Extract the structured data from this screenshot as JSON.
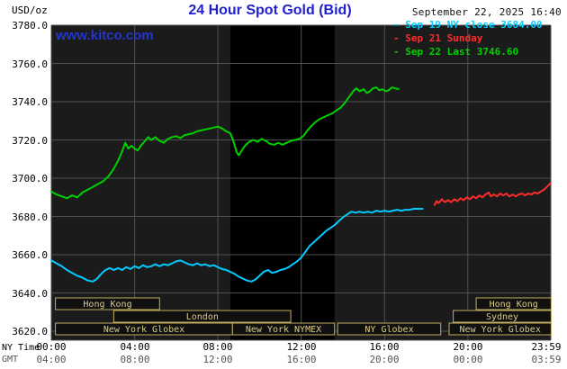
{
  "header": {
    "units_label": "USD/oz",
    "title": "24 Hour Spot Gold (Bid)",
    "datetime": "September 22, 2025 16:40",
    "watermark": "www.kitco.com"
  },
  "legend": [
    {
      "dash": "-",
      "label": "Sep 19 NY close 3684.00",
      "color": "#00ccff"
    },
    {
      "dash": "-",
      "label": "Sep 21 Sunday",
      "color": "#ff2b2b"
    },
    {
      "dash": "-",
      "label": "Sep 22 Last 3746.60",
      "color": "#00d000"
    }
  ],
  "axes": {
    "y_ticks": [
      "3780.0",
      "3760.0",
      "3740.0",
      "3720.0",
      "3700.0",
      "3680.0",
      "3660.0",
      "3640.0",
      "3620.0"
    ],
    "x_ny_label": "NY Time",
    "x_gmt_label": "GMT",
    "x_ny_ticks": [
      "00:00",
      "04:00",
      "08:00",
      "12:00",
      "16:00",
      "20:00",
      "23:59"
    ],
    "x_gmt_ticks": [
      "04:00",
      "08:00",
      "12:00",
      "16:00",
      "20:00",
      "00:00",
      "03:59"
    ]
  },
  "sessions": [
    {
      "label": "Hong Kong",
      "row": 0,
      "start": 0.2,
      "end": 5.2
    },
    {
      "label": "Hong Kong",
      "row": 0,
      "start": 20.4,
      "end": 24
    },
    {
      "label": "London",
      "row": 1,
      "start": 3.0,
      "end": 11.5
    },
    {
      "label": "Sydney",
      "row": 1,
      "start": 19.3,
      "end": 24
    },
    {
      "label": "New York Globex",
      "row": 2,
      "start": 0.2,
      "end": 8.7
    },
    {
      "label": "New York NYMEX",
      "row": 2,
      "start": 8.7,
      "end": 13.6
    },
    {
      "label": "NY Globex",
      "row": 2,
      "start": 13.75,
      "end": 18.7
    },
    {
      "label": "New York Globex",
      "row": 2,
      "start": 19.1,
      "end": 24
    }
  ],
  "colors": {
    "page_bg": "#ffffff",
    "plot_bg": "#1b1b1b",
    "band": "#000000",
    "grid": "#505050",
    "session_border": "#bfae62",
    "session_fill": "#101010",
    "session_text": "#d9cb87",
    "title_blue": "#2121cc",
    "watermark_blue": "#2336cc"
  },
  "chart_data": {
    "type": "line",
    "title": "24 Hour Spot Gold (Bid)",
    "ylabel": "USD/oz",
    "ylim": [
      3620,
      3780
    ],
    "xlim_hours": [
      0,
      24
    ],
    "x_tick_hours": [
      0,
      4,
      8,
      12,
      16,
      20,
      23.983
    ],
    "grid": true,
    "legend_position": "top-right",
    "nymex_band_hours": [
      8.6,
      13.6
    ],
    "series": [
      {
        "id": "sep19",
        "name": "Sep 19 NY close",
        "close_value": 3684.0,
        "color": "#00ccff",
        "points": [
          [
            0,
            3657
          ],
          [
            0.25,
            3655.5
          ],
          [
            0.5,
            3654
          ],
          [
            0.75,
            3652
          ],
          [
            1,
            3650.5
          ],
          [
            1.25,
            3649
          ],
          [
            1.5,
            3648
          ],
          [
            1.75,
            3646.5
          ],
          [
            2,
            3646
          ],
          [
            2.2,
            3647.5
          ],
          [
            2.4,
            3650
          ],
          [
            2.6,
            3652
          ],
          [
            2.8,
            3653
          ],
          [
            3,
            3652
          ],
          [
            3.2,
            3653
          ],
          [
            3.4,
            3652
          ],
          [
            3.6,
            3653.5
          ],
          [
            3.8,
            3652.5
          ],
          [
            4,
            3654
          ],
          [
            4.2,
            3653
          ],
          [
            4.4,
            3654.5
          ],
          [
            4.6,
            3653.5
          ],
          [
            4.8,
            3654
          ],
          [
            5,
            3655
          ],
          [
            5.2,
            3654
          ],
          [
            5.4,
            3655
          ],
          [
            5.6,
            3654.5
          ],
          [
            5.8,
            3655.5
          ],
          [
            6,
            3656.5
          ],
          [
            6.2,
            3657
          ],
          [
            6.4,
            3656
          ],
          [
            6.6,
            3655
          ],
          [
            6.8,
            3654.5
          ],
          [
            7,
            3655.5
          ],
          [
            7.2,
            3654.5
          ],
          [
            7.4,
            3655
          ],
          [
            7.6,
            3654
          ],
          [
            7.8,
            3654.5
          ],
          [
            8,
            3653.5
          ],
          [
            8.2,
            3652.5
          ],
          [
            8.4,
            3652
          ],
          [
            8.6,
            3651
          ],
          [
            8.8,
            3650
          ],
          [
            9,
            3648.5
          ],
          [
            9.2,
            3647.5
          ],
          [
            9.4,
            3646.5
          ],
          [
            9.6,
            3646
          ],
          [
            9.8,
            3647
          ],
          [
            10,
            3649
          ],
          [
            10.2,
            3651
          ],
          [
            10.4,
            3652
          ],
          [
            10.6,
            3650.5
          ],
          [
            10.8,
            3651
          ],
          [
            11,
            3652
          ],
          [
            11.2,
            3652.5
          ],
          [
            11.4,
            3653.5
          ],
          [
            11.6,
            3655
          ],
          [
            11.8,
            3656.5
          ],
          [
            12,
            3658.5
          ],
          [
            12.2,
            3661.5
          ],
          [
            12.4,
            3664.5
          ],
          [
            12.6,
            3666.5
          ],
          [
            12.8,
            3668.5
          ],
          [
            13,
            3670.5
          ],
          [
            13.2,
            3672.5
          ],
          [
            13.4,
            3674
          ],
          [
            13.6,
            3675.5
          ],
          [
            13.8,
            3677.5
          ],
          [
            14,
            3679.5
          ],
          [
            14.2,
            3681
          ],
          [
            14.4,
            3682.5
          ],
          [
            14.6,
            3682
          ],
          [
            14.8,
            3682.5
          ],
          [
            15,
            3682
          ],
          [
            15.2,
            3682.5
          ],
          [
            15.4,
            3682
          ],
          [
            15.6,
            3683
          ],
          [
            15.8,
            3682.5
          ],
          [
            16,
            3683
          ],
          [
            16.2,
            3682.5
          ],
          [
            16.4,
            3683
          ],
          [
            16.6,
            3683.5
          ],
          [
            16.8,
            3683
          ],
          [
            17,
            3683.5
          ],
          [
            17.2,
            3683.5
          ],
          [
            17.4,
            3684
          ],
          [
            17.6,
            3684
          ],
          [
            17.83,
            3684
          ]
        ]
      },
      {
        "id": "sep21",
        "name": "Sep 21 Sunday",
        "color": "#ff2b2b",
        "points": [
          [
            18.4,
            3686
          ],
          [
            18.5,
            3688
          ],
          [
            18.6,
            3687
          ],
          [
            18.75,
            3689
          ],
          [
            18.9,
            3687.5
          ],
          [
            19.05,
            3688.5
          ],
          [
            19.2,
            3687.5
          ],
          [
            19.35,
            3689
          ],
          [
            19.5,
            3688
          ],
          [
            19.65,
            3689.5
          ],
          [
            19.8,
            3688.5
          ],
          [
            19.95,
            3690
          ],
          [
            20.1,
            3689
          ],
          [
            20.25,
            3690.5
          ],
          [
            20.4,
            3689.5
          ],
          [
            20.55,
            3691
          ],
          [
            20.7,
            3690
          ],
          [
            20.85,
            3691.5
          ],
          [
            21,
            3692.5
          ],
          [
            21.1,
            3690.5
          ],
          [
            21.25,
            3691.5
          ],
          [
            21.4,
            3690.5
          ],
          [
            21.55,
            3692
          ],
          [
            21.7,
            3691
          ],
          [
            21.85,
            3692
          ],
          [
            22,
            3690.5
          ],
          [
            22.15,
            3691.5
          ],
          [
            22.3,
            3690.5
          ],
          [
            22.45,
            3691.5
          ],
          [
            22.6,
            3692
          ],
          [
            22.75,
            3691
          ],
          [
            22.9,
            3692
          ],
          [
            23.05,
            3691.5
          ],
          [
            23.2,
            3692.5
          ],
          [
            23.35,
            3692
          ],
          [
            23.5,
            3693
          ],
          [
            23.65,
            3694
          ],
          [
            23.8,
            3695.5
          ],
          [
            23.98,
            3697.5
          ]
        ]
      },
      {
        "id": "sep22",
        "name": "Sep 22",
        "last_value": 3746.6,
        "color": "#00d000",
        "points": [
          [
            0,
            3693
          ],
          [
            0.25,
            3691.5
          ],
          [
            0.5,
            3690.5
          ],
          [
            0.75,
            3689.5
          ],
          [
            1,
            3691
          ],
          [
            1.25,
            3690
          ],
          [
            1.5,
            3692.5
          ],
          [
            1.75,
            3694
          ],
          [
            2,
            3695.5
          ],
          [
            2.25,
            3697
          ],
          [
            2.5,
            3698.5
          ],
          [
            2.75,
            3701
          ],
          [
            3,
            3705
          ],
          [
            3.2,
            3709
          ],
          [
            3.4,
            3714
          ],
          [
            3.55,
            3718.5
          ],
          [
            3.7,
            3715.5
          ],
          [
            3.85,
            3717
          ],
          [
            4,
            3715.5
          ],
          [
            4.15,
            3714.5
          ],
          [
            4.3,
            3717
          ],
          [
            4.5,
            3719.5
          ],
          [
            4.65,
            3721.5
          ],
          [
            4.8,
            3720
          ],
          [
            5,
            3721.5
          ],
          [
            5.2,
            3719.5
          ],
          [
            5.4,
            3718.5
          ],
          [
            5.6,
            3720.5
          ],
          [
            5.8,
            3721.5
          ],
          [
            6,
            3722
          ],
          [
            6.2,
            3721
          ],
          [
            6.4,
            3722.5
          ],
          [
            6.6,
            3723
          ],
          [
            6.8,
            3723.5
          ],
          [
            7,
            3724.5
          ],
          [
            7.2,
            3725
          ],
          [
            7.4,
            3725.5
          ],
          [
            7.6,
            3726
          ],
          [
            7.8,
            3726.5
          ],
          [
            8,
            3727
          ],
          [
            8.2,
            3726
          ],
          [
            8.4,
            3724.5
          ],
          [
            8.6,
            3723.5
          ],
          [
            8.75,
            3719
          ],
          [
            8.9,
            3713.5
          ],
          [
            9,
            3712
          ],
          [
            9.15,
            3714.5
          ],
          [
            9.3,
            3717
          ],
          [
            9.5,
            3719
          ],
          [
            9.7,
            3720
          ],
          [
            9.9,
            3719
          ],
          [
            10.1,
            3720.5
          ],
          [
            10.3,
            3719.5
          ],
          [
            10.5,
            3718
          ],
          [
            10.7,
            3717.5
          ],
          [
            10.9,
            3718.5
          ],
          [
            11.1,
            3717.5
          ],
          [
            11.3,
            3718.5
          ],
          [
            11.5,
            3719.5
          ],
          [
            11.7,
            3720
          ],
          [
            11.9,
            3720.5
          ],
          [
            12.1,
            3722
          ],
          [
            12.3,
            3725
          ],
          [
            12.5,
            3727.5
          ],
          [
            12.7,
            3729.5
          ],
          [
            12.9,
            3731
          ],
          [
            13.1,
            3732
          ],
          [
            13.3,
            3733
          ],
          [
            13.5,
            3734
          ],
          [
            13.7,
            3735.5
          ],
          [
            13.9,
            3737
          ],
          [
            14.1,
            3739.5
          ],
          [
            14.3,
            3742.5
          ],
          [
            14.5,
            3745.5
          ],
          [
            14.65,
            3747
          ],
          [
            14.8,
            3745.5
          ],
          [
            15,
            3746.5
          ],
          [
            15.15,
            3744.5
          ],
          [
            15.3,
            3745.5
          ],
          [
            15.45,
            3747
          ],
          [
            15.6,
            3747.5
          ],
          [
            15.75,
            3746
          ],
          [
            15.9,
            3746.5
          ],
          [
            16.05,
            3745.5
          ],
          [
            16.2,
            3746
          ],
          [
            16.35,
            3747.5
          ],
          [
            16.5,
            3747
          ],
          [
            16.67,
            3746.6
          ]
        ]
      }
    ]
  }
}
